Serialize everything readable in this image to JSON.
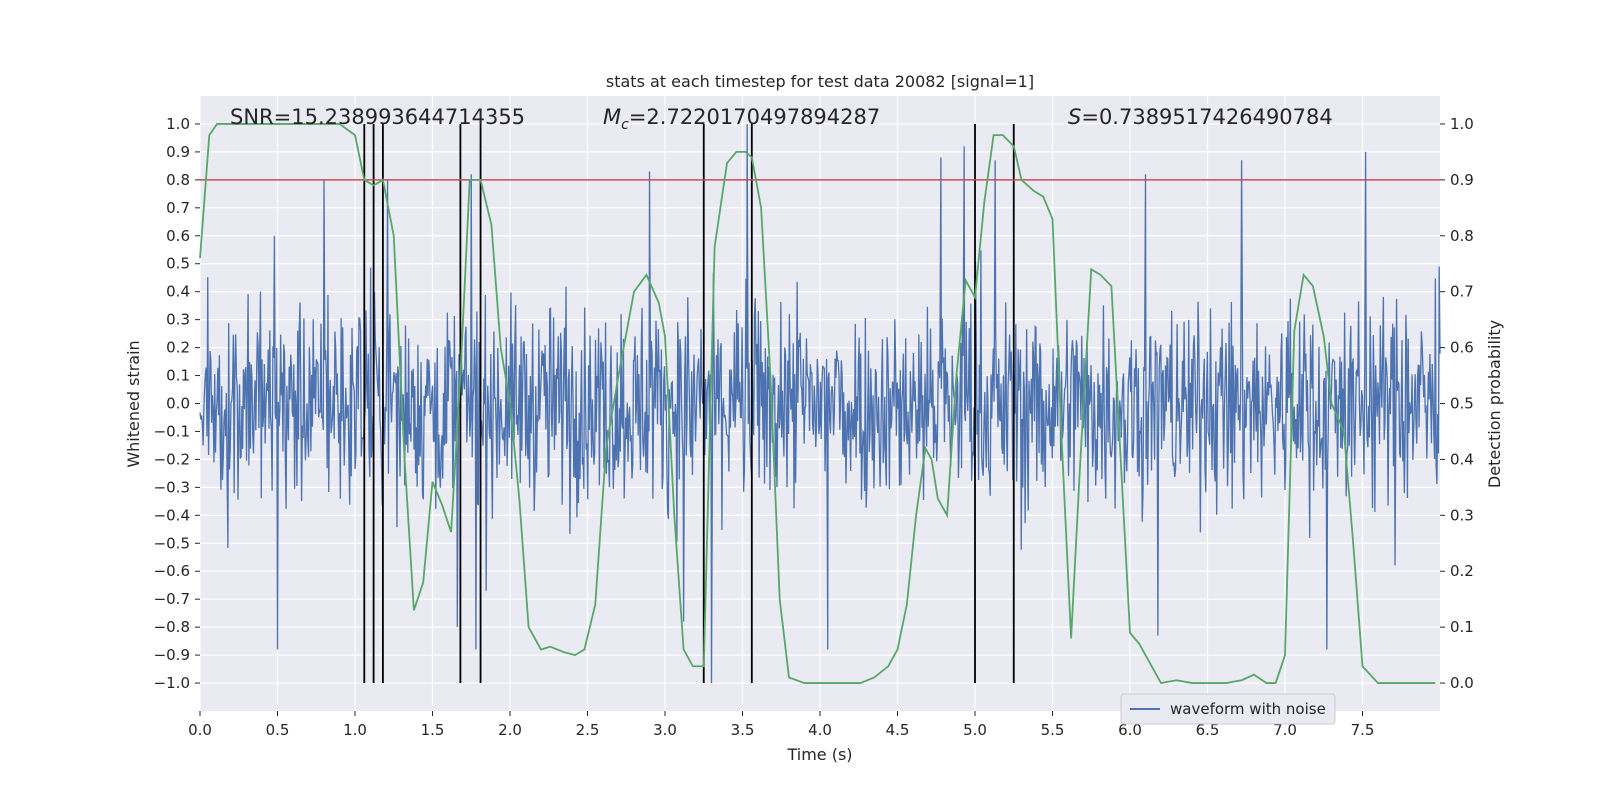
{
  "chart_data": {
    "type": "line",
    "title": "stats at each timestep for test data 20082 [signal=1]",
    "xlabel": "Time (s)",
    "ylabel_left": "Whitened strain",
    "ylabel_right": "Detection probability",
    "xlim": [
      0.0,
      8.0
    ],
    "ylim_left": [
      -1.1,
      1.1
    ],
    "ylim_right": [
      -0.05,
      1.05
    ],
    "grid": true,
    "xticks": [
      "0.0",
      "0.5",
      "1.0",
      "1.5",
      "2.0",
      "2.5",
      "3.0",
      "3.5",
      "4.0",
      "4.5",
      "5.0",
      "5.5",
      "6.0",
      "6.5",
      "7.0",
      "7.5"
    ],
    "yticks_left": [
      "1.0",
      "0.9",
      "0.8",
      "0.7",
      "0.6",
      "0.5",
      "0.4",
      "0.3",
      "0.2",
      "0.1",
      "0.0",
      "−0.1",
      "−0.2",
      "−0.3",
      "−0.4",
      "−0.5",
      "−0.6",
      "−0.7",
      "−0.8",
      "−0.9",
      "−1.0"
    ],
    "yticks_right": [
      "1.0",
      "0.9",
      "0.8",
      "0.7",
      "0.6",
      "0.5",
      "0.4",
      "0.3",
      "0.2",
      "0.1",
      "0.0"
    ],
    "annotations": {
      "snr": "SNR=15.238993644714355",
      "mc_symbol": "M",
      "mc_sub": "c",
      "mc_value": "=2.7220170497894287",
      "s_symbol": "S",
      "s_value": "=0.7389517426490784"
    },
    "threshold": {
      "value": 0.9,
      "axis": "right",
      "color": "#c44e52"
    },
    "vertical_lines_x": [
      1.06,
      1.12,
      1.18,
      1.68,
      1.81,
      3.25,
      3.56,
      5.0,
      5.25
    ],
    "series": [
      {
        "name": "waveform with noise",
        "color": "#4c72b0",
        "axis": "left",
        "style": "dense noise, amplitude roughly ±0.5 with spikes",
        "x_range": [
          0.0,
          8.0
        ],
        "samples": 1600,
        "envelope": 0.45,
        "peak_spikes": [
          {
            "x": 0.48,
            "y": 0.6
          },
          {
            "x": 0.8,
            "y": 0.8
          },
          {
            "x": 1.21,
            "y": 0.8
          },
          {
            "x": 1.75,
            "y": 0.82
          },
          {
            "x": 2.9,
            "y": 0.83
          },
          {
            "x": 3.53,
            "y": 1.0
          },
          {
            "x": 4.78,
            "y": 0.88
          },
          {
            "x": 4.93,
            "y": 0.92
          },
          {
            "x": 5.13,
            "y": 0.87
          },
          {
            "x": 6.1,
            "y": 0.82
          },
          {
            "x": 6.72,
            "y": 0.87
          },
          {
            "x": 7.52,
            "y": 0.9
          },
          {
            "x": 0.5,
            "y": -0.88
          },
          {
            "x": 1.78,
            "y": -0.88
          },
          {
            "x": 3.3,
            "y": -1.0
          },
          {
            "x": 4.05,
            "y": -0.88
          },
          {
            "x": 6.18,
            "y": -0.83
          },
          {
            "x": 7.27,
            "y": -0.88
          },
          {
            "x": 1.66,
            "y": -0.8
          },
          {
            "x": 3.12,
            "y": -0.78
          }
        ]
      },
      {
        "name": "detection probability",
        "color": "#55a868",
        "axis": "right",
        "x": [
          0.0,
          0.06,
          0.11,
          0.2,
          0.4,
          0.6,
          0.8,
          0.9,
          1.0,
          1.06,
          1.12,
          1.18,
          1.25,
          1.32,
          1.38,
          1.44,
          1.5,
          1.56,
          1.62,
          1.68,
          1.74,
          1.81,
          1.88,
          1.94,
          2.0,
          2.06,
          2.12,
          2.2,
          2.26,
          2.35,
          2.42,
          2.48,
          2.55,
          2.62,
          2.7,
          2.8,
          2.88,
          2.96,
          3.0,
          3.06,
          3.12,
          3.18,
          3.25,
          3.32,
          3.4,
          3.46,
          3.52,
          3.56,
          3.62,
          3.68,
          3.74,
          3.8,
          3.9,
          4.0,
          4.1,
          4.18,
          4.26,
          4.35,
          4.44,
          4.5,
          4.56,
          4.62,
          4.68,
          4.72,
          4.76,
          4.82,
          4.88,
          4.94,
          5.0,
          5.06,
          5.12,
          5.18,
          5.25,
          5.3,
          5.38,
          5.44,
          5.5,
          5.56,
          5.62,
          5.68,
          5.75,
          5.81,
          5.88,
          5.94,
          6.0,
          6.06,
          6.12,
          6.2,
          6.3,
          6.4,
          6.5,
          6.62,
          6.72,
          6.8,
          6.88,
          6.94,
          7.0,
          7.06,
          7.12,
          7.18,
          7.25,
          7.3,
          7.38,
          7.44,
          7.5,
          7.6,
          7.75,
          7.9,
          7.97
        ],
        "y": [
          0.76,
          0.98,
          1.0,
          1.0,
          1.0,
          1.0,
          1.0,
          1.0,
          0.98,
          0.9,
          0.89,
          0.9,
          0.8,
          0.4,
          0.13,
          0.18,
          0.36,
          0.32,
          0.27,
          0.55,
          0.9,
          0.9,
          0.82,
          0.6,
          0.5,
          0.33,
          0.1,
          0.06,
          0.065,
          0.055,
          0.05,
          0.06,
          0.14,
          0.42,
          0.55,
          0.7,
          0.73,
          0.68,
          0.62,
          0.3,
          0.06,
          0.03,
          0.03,
          0.78,
          0.93,
          0.95,
          0.95,
          0.94,
          0.85,
          0.55,
          0.15,
          0.01,
          0.0,
          0.0,
          0.0,
          0.0,
          0.0,
          0.01,
          0.03,
          0.06,
          0.14,
          0.3,
          0.42,
          0.4,
          0.33,
          0.3,
          0.55,
          0.72,
          0.69,
          0.86,
          0.98,
          0.98,
          0.96,
          0.9,
          0.88,
          0.87,
          0.83,
          0.43,
          0.08,
          0.4,
          0.74,
          0.73,
          0.71,
          0.4,
          0.09,
          0.07,
          0.04,
          0.0,
          0.005,
          0.0,
          0.0,
          0.0,
          0.005,
          0.015,
          0.0,
          0.0,
          0.05,
          0.63,
          0.73,
          0.71,
          0.62,
          0.5,
          0.45,
          0.25,
          0.03,
          0.0,
          0.0,
          0.0,
          0.0
        ]
      }
    ],
    "legend": {
      "placement": "lower-right",
      "entries": [
        "waveform with noise"
      ]
    }
  }
}
